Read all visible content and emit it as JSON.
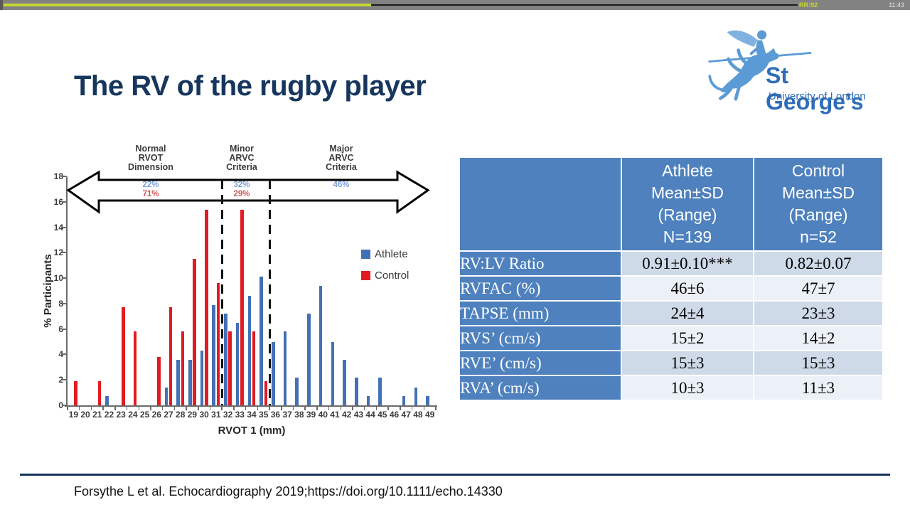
{
  "overlay": {
    "timer": "RR:92",
    "clock": "11:43",
    "progress_color": "#c6d832",
    "bar_color": "#828282"
  },
  "header": {
    "title": "The RV of the rugby player",
    "logo": {
      "name": "St George’s",
      "subtitle": "University of London",
      "icon": "knight-on-horse-icon",
      "color": "#2e6db8"
    }
  },
  "chart_data": {
    "type": "bar",
    "xlabel": "RVOT 1 (mm)",
    "ylabel": "% Participants",
    "ylim": [
      0,
      18
    ],
    "ytick_step": 2,
    "grid": false,
    "legend_position": "right-middle",
    "categories": [
      19,
      20,
      21,
      22,
      23,
      24,
      25,
      26,
      27,
      28,
      29,
      30,
      31,
      32,
      33,
      34,
      35,
      36,
      37,
      38,
      39,
      40,
      41,
      42,
      43,
      44,
      45,
      46,
      47,
      48,
      49
    ],
    "series": [
      {
        "name": "Athlete",
        "color": "#4470B5",
        "values": [
          0,
          0,
          0,
          0.7,
          0,
          0,
          0,
          0,
          1.4,
          3.6,
          3.6,
          4.3,
          7.9,
          7.2,
          6.5,
          8.6,
          10.1,
          5.0,
          5.8,
          2.2,
          7.2,
          9.4,
          5.0,
          3.6,
          2.2,
          0.7,
          2.2,
          0,
          0.7,
          1.4,
          0.7
        ]
      },
      {
        "name": "Control",
        "color": "#E21B22",
        "values": [
          1.9,
          0,
          1.9,
          0,
          7.7,
          5.8,
          0,
          3.8,
          7.7,
          5.8,
          11.5,
          15.4,
          9.6,
          5.8,
          15.4,
          5.8,
          1.9,
          0,
          0,
          0,
          0,
          0,
          0,
          0,
          0,
          0,
          0,
          0,
          0,
          0,
          0
        ]
      }
    ],
    "zones": [
      {
        "label": "Normal\nRVOT\nDimension",
        "athlete_pct": "22%",
        "control_pct": "71%"
      },
      {
        "label": "Minor\nARVC\nCriteria",
        "athlete_pct": "32%",
        "control_pct": "29%"
      },
      {
        "label": "Major\nARVC\nCriteria",
        "athlete_pct": "46%",
        "control_pct": ""
      }
    ],
    "dashed_lines_after_category": [
      31,
      35
    ]
  },
  "table": {
    "header": {
      "metric": "",
      "athlete": "Athlete\nMean±SD\n(Range)\nN=139",
      "control": "Control\nMean±SD\n(Range)\nn=52"
    },
    "header_bg": "#4E81BD",
    "band_colors": [
      "#CFDAE8",
      "#ECF1F7"
    ],
    "rows": [
      {
        "label": "RV:LV Ratio",
        "athlete": "0.91±0.10***",
        "control": "0.82±0.07"
      },
      {
        "label": "RVFAC (%)",
        "athlete": "46±6",
        "control": "47±7"
      },
      {
        "label": "TAPSE (mm)",
        "athlete": "24±4",
        "control": "23±3"
      },
      {
        "label": "RVS’ (cm/s)",
        "athlete": "15±2",
        "control": "14±2"
      },
      {
        "label": "RVE’ (cm/s)",
        "athlete": "15±3",
        "control": "15±3"
      },
      {
        "label": "RVA’ (cm/s)",
        "athlete": "10±3",
        "control": "11±3"
      }
    ]
  },
  "footer": {
    "citation": "Forsythe L et al. Echocardiography 2019;https://doi.org/10.1111/echo.14330"
  }
}
